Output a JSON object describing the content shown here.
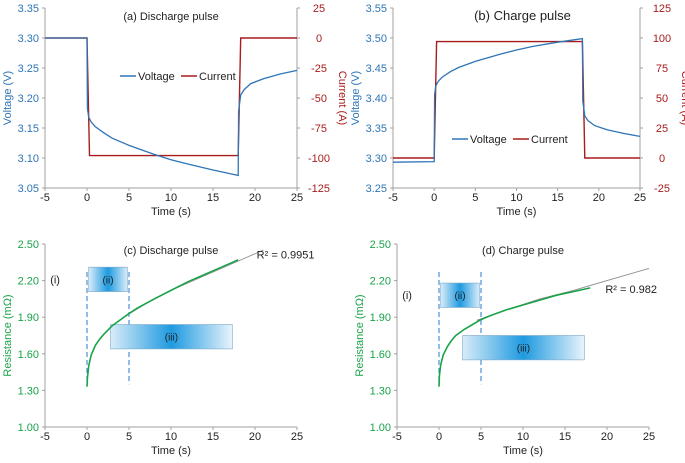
{
  "colors": {
    "voltage": "#2e75b6",
    "current": "#a81c1c",
    "resistance": "#1aa34a",
    "fit": "#8c8c8c",
    "dashed": "#4a90d9",
    "box_dark": "#1e9ae0",
    "box_light": "#d9ecf8",
    "axis": "#a0a0a0",
    "text": "#222222"
  },
  "chart_data": [
    {
      "id": "a",
      "type": "line",
      "title": "(a) Discharge pulse",
      "xlabel": "Time (s)",
      "ylabel": "Voltage (V)",
      "y2label": "Current (A)",
      "xlim": [
        -5,
        25
      ],
      "ylim": [
        3.05,
        3.35
      ],
      "y2lim": [
        -125,
        25
      ],
      "xticks": [
        "-5",
        "0",
        "5",
        "10",
        "15",
        "20",
        "25"
      ],
      "yticks": [
        "3.05",
        "3.10",
        "3.15",
        "3.20",
        "3.25",
        "3.30",
        "3.35"
      ],
      "y2ticks": [
        "-125",
        "-100",
        "-75",
        "-50",
        "-25",
        "0",
        "25"
      ],
      "legend": {
        "position": "center",
        "voltage_label": "Voltage",
        "current_label": "Current"
      },
      "series": [
        {
          "name": "Voltage",
          "axis": "left",
          "x": [
            -5,
            0,
            0.05,
            0.2,
            0.5,
            1,
            2,
            3,
            5,
            8,
            10,
            12,
            15,
            17,
            18,
            18.05,
            18.3,
            18.7,
            19.5,
            21,
            23,
            25
          ],
          "y": [
            3.3,
            3.3,
            3.183,
            3.168,
            3.16,
            3.152,
            3.142,
            3.133,
            3.121,
            3.106,
            3.097,
            3.09,
            3.08,
            3.074,
            3.071,
            3.178,
            3.205,
            3.214,
            3.224,
            3.232,
            3.24,
            3.246
          ]
        },
        {
          "name": "Current",
          "axis": "right",
          "x": [
            -5,
            0,
            0.3,
            18,
            18.3,
            25
          ],
          "y": [
            0,
            0,
            -98,
            -98,
            0,
            0
          ]
        }
      ]
    },
    {
      "id": "b",
      "type": "line",
      "title": "(b) Charge pulse",
      "xlabel": "Time (s)",
      "ylabel": "Voltage (V)",
      "y2label": "Current (A)",
      "xlim": [
        -5,
        25
      ],
      "ylim": [
        3.25,
        3.55
      ],
      "y2lim": [
        -25,
        125
      ],
      "xticks": [
        "-5",
        "0",
        "5",
        "10",
        "15",
        "20",
        "25"
      ],
      "yticks": [
        "3.25",
        "3.30",
        "3.35",
        "3.40",
        "3.45",
        "3.50",
        "3.55"
      ],
      "y2ticks": [
        "-25",
        "0",
        "25",
        "50",
        "75",
        "100",
        "125"
      ],
      "legend": {
        "position": "lower-center",
        "voltage_label": "Voltage",
        "current_label": "Current"
      },
      "series": [
        {
          "name": "Voltage",
          "axis": "left",
          "x": [
            -5,
            0,
            0.05,
            0.2,
            0.5,
            1,
            2,
            3,
            5,
            8,
            10,
            12,
            15,
            17,
            18,
            18.05,
            18.3,
            18.7,
            19.5,
            21,
            23,
            25
          ],
          "y": [
            3.293,
            3.294,
            3.405,
            3.42,
            3.428,
            3.435,
            3.444,
            3.451,
            3.461,
            3.473,
            3.48,
            3.486,
            3.493,
            3.497,
            3.499,
            3.395,
            3.37,
            3.362,
            3.354,
            3.347,
            3.341,
            3.336
          ]
        },
        {
          "name": "Current",
          "axis": "right",
          "x": [
            -5,
            0,
            0.3,
            18,
            18.3,
            25
          ],
          "y": [
            0,
            0,
            97,
            97,
            0,
            0
          ]
        }
      ]
    },
    {
      "id": "c",
      "type": "line",
      "title": "(c) Discharge pulse",
      "xlabel": "Time (s)",
      "ylabel": "Resistance (mΩ)",
      "xlim": [
        -5,
        25
      ],
      "ylim": [
        1.0,
        2.5
      ],
      "xticks": [
        "-5",
        "0",
        "5",
        "10",
        "15",
        "20",
        "25"
      ],
      "yticks": [
        "1.00",
        "1.30",
        "1.60",
        "1.90",
        "2.20",
        "2.50"
      ],
      "r2_label": "R² = 0.9951",
      "annotation_labels": [
        "(i)",
        "(ii)",
        "(iii)"
      ],
      "dashed_x": [
        0,
        5
      ],
      "box_ii": {
        "x": [
          0.2,
          4.8
        ],
        "y": [
          2.11,
          2.31
        ]
      },
      "box_iii": {
        "x": [
          2.8,
          17.3
        ],
        "y": [
          1.64,
          1.84
        ]
      },
      "series": [
        {
          "name": "Resistance",
          "x": [
            0,
            0.05,
            0.2,
            0.5,
            1,
            1.5,
            2,
            3,
            4,
            5,
            6,
            8,
            10,
            12,
            14,
            16,
            18
          ],
          "y": [
            1.33,
            1.4,
            1.5,
            1.59,
            1.67,
            1.72,
            1.76,
            1.83,
            1.88,
            1.93,
            1.975,
            2.05,
            2.12,
            2.19,
            2.25,
            2.31,
            2.37
          ]
        },
        {
          "name": "Fit",
          "x": [
            4.5,
            7,
            10,
            13,
            16,
            19,
            21
          ],
          "y": [
            1.905,
            2.01,
            2.12,
            2.21,
            2.3,
            2.39,
            2.45
          ]
        }
      ]
    },
    {
      "id": "d",
      "type": "line",
      "title": "(d) Charge pulse",
      "xlabel": "Time (s)",
      "ylabel": "Resistance (mΩ)",
      "xlim": [
        -5,
        25
      ],
      "ylim": [
        1.0,
        2.5
      ],
      "xticks": [
        "-5",
        "0",
        "5",
        "10",
        "15",
        "20",
        "25"
      ],
      "yticks": [
        "1.00",
        "1.30",
        "1.60",
        "1.90",
        "2.20",
        "2.50"
      ],
      "r2_label": "R² = 0.982",
      "annotation_labels": [
        "(i)",
        "(ii)",
        "(iii)"
      ],
      "dashed_x": [
        0,
        5
      ],
      "box_ii": {
        "x": [
          0.2,
          4.8
        ],
        "y": [
          1.98,
          2.18
        ]
      },
      "box_iii": {
        "x": [
          2.8,
          17.3
        ],
        "y": [
          1.55,
          1.75
        ]
      },
      "series": [
        {
          "name": "Resistance",
          "x": [
            0,
            0.05,
            0.2,
            0.5,
            1,
            1.5,
            2,
            3,
            4,
            5,
            6,
            8,
            10,
            12,
            14,
            16,
            18
          ],
          "y": [
            1.33,
            1.42,
            1.51,
            1.59,
            1.66,
            1.71,
            1.75,
            1.8,
            1.84,
            1.88,
            1.91,
            1.96,
            2.0,
            2.04,
            2.08,
            2.11,
            2.14
          ]
        },
        {
          "name": "Fit",
          "x": [
            4.5,
            8,
            12,
            16,
            20,
            25
          ],
          "y": [
            1.875,
            1.96,
            2.05,
            2.12,
            2.2,
            2.3
          ]
        }
      ]
    }
  ]
}
